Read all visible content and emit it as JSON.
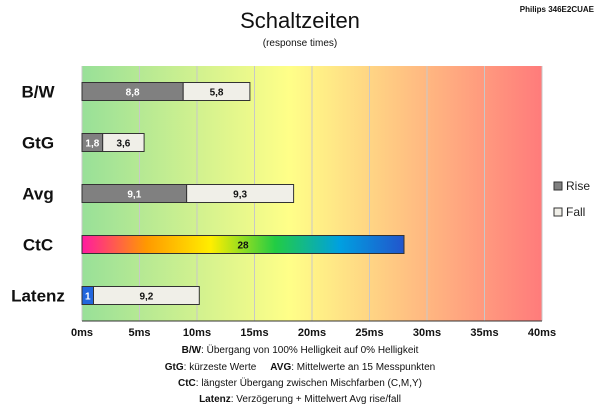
{
  "chart_data": {
    "type": "bar",
    "title": "Schaltzeiten",
    "subtitle": "(response times)",
    "monitor": "Philips 346E2CUAE",
    "xlim": [
      0,
      40
    ],
    "x_ticks": [
      0,
      5,
      10,
      15,
      20,
      25,
      30,
      35,
      40
    ],
    "x_unit": "ms",
    "grid": true,
    "background_gradient": [
      "#98e098",
      "#ffff88",
      "#ff7b7b"
    ],
    "legend_placement": "right",
    "categories": [
      "B/W",
      "GtG",
      "Avg",
      "CtC",
      "Latenz"
    ],
    "series": [
      {
        "name": "Rise",
        "color": "#808080",
        "values": [
          8.8,
          1.8,
          9.1,
          null,
          1
        ]
      },
      {
        "name": "Fall",
        "color": "#f0efe8",
        "values": [
          5.8,
          3.6,
          9.3,
          null,
          9.2
        ]
      }
    ],
    "ctc": {
      "value": 28,
      "label": "28",
      "gradient": [
        "#ff1aa0",
        "#ff9900",
        "#ffee00",
        "#22cc44",
        "#00a0e0",
        "#2255cc"
      ]
    },
    "latency_bar_color": "#2266dd",
    "value_labels": {
      "B/W": [
        "8,8",
        "5,8"
      ],
      "GtG": [
        "1,8",
        "3,6"
      ],
      "Avg": [
        "9,1",
        "9,3"
      ],
      "CtC": [
        "28"
      ],
      "Latenz": [
        "1",
        "9,2"
      ]
    }
  },
  "notes": [
    {
      "bold": "B/W",
      "text": ":  Übergang von 100% Helligkeit auf 0% Helligkeit"
    },
    {
      "bold": "GtG",
      "text": ": kürzeste  Werte",
      "bold2": "AVG",
      "text2": ": Mittelwerte  an 15 Messpunkten"
    },
    {
      "bold": "CtC",
      "text": ": längster Übergang  zwischen Mischfarben  (C,M,Y)"
    },
    {
      "bold": "Latenz",
      "text": ": Verzögerung  + Mittelwert Avg rise/fall"
    }
  ]
}
